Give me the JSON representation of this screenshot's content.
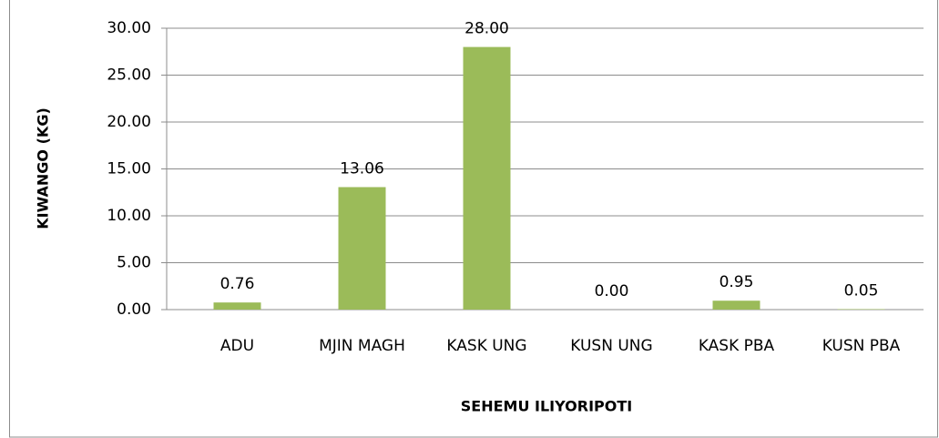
{
  "chart_data": {
    "type": "bar",
    "y_label": "KIWANGO (KG)",
    "x_label": "SEHEMU ILIYORIPOTI",
    "categories": [
      "ADU",
      "MJIN MAGH",
      "KASK UNG",
      "KUSN UNG",
      "KASK PBA",
      "KUSN PBA"
    ],
    "values": [
      0.76,
      13.06,
      28.0,
      0.0,
      0.95,
      0.05
    ],
    "value_labels": [
      "0.76",
      "13.06",
      "28.00",
      "0.00",
      "0.95",
      "0.05"
    ],
    "color": "#9bbb59",
    "ylim": [
      0,
      30
    ],
    "yticks": [
      {
        "value": 0,
        "label": "0.00"
      },
      {
        "value": 5,
        "label": "5.00"
      },
      {
        "value": 10,
        "label": "10.00"
      },
      {
        "value": 15,
        "label": "15.00"
      },
      {
        "value": 20,
        "label": "20.00"
      },
      {
        "value": 25,
        "label": "25.00"
      },
      {
        "value": 30,
        "label": "30.00"
      }
    ],
    "grid": true
  }
}
